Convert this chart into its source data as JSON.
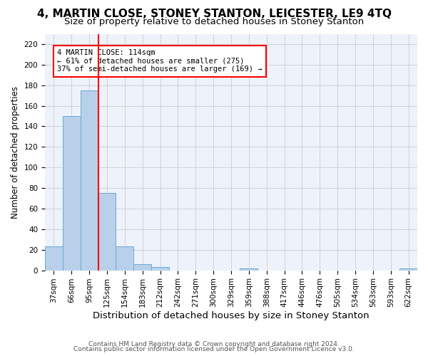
{
  "title": "4, MARTIN CLOSE, STONEY STANTON, LEICESTER, LE9 4TQ",
  "subtitle": "Size of property relative to detached houses in Stoney Stanton",
  "xlabel": "Distribution of detached houses by size in Stoney Stanton",
  "ylabel": "Number of detached properties",
  "footer_line1": "Contains HM Land Registry data © Crown copyright and database right 2024.",
  "footer_line2": "Contains public sector information licensed under the Open Government Licence v3.0.",
  "bins": [
    "37sqm",
    "66sqm",
    "95sqm",
    "125sqm",
    "154sqm",
    "183sqm",
    "212sqm",
    "242sqm",
    "271sqm",
    "300sqm",
    "329sqm",
    "359sqm",
    "388sqm",
    "417sqm",
    "446sqm",
    "476sqm",
    "505sqm",
    "534sqm",
    "563sqm",
    "593sqm",
    "622sqm"
  ],
  "bar_values": [
    23,
    150,
    175,
    75,
    23,
    6,
    3,
    0,
    0,
    0,
    0,
    2,
    0,
    0,
    0,
    0,
    0,
    0,
    0,
    0,
    2
  ],
  "bar_color": "#b8d0ea",
  "bar_edge_color": "#6aaad4",
  "property_line_x": 2.5,
  "property_line_color": "red",
  "annotation_text": "4 MARTIN CLOSE: 114sqm\n← 61% of detached houses are smaller (275)\n37% of semi-detached houses are larger (169) →",
  "ylim": [
    0,
    230
  ],
  "yticks": [
    0,
    20,
    40,
    60,
    80,
    100,
    120,
    140,
    160,
    180,
    200,
    220
  ],
  "grid_color": "#cccccc",
  "bg_color": "#eef2fb",
  "title_fontsize": 11,
  "subtitle_fontsize": 9.5,
  "xlabel_fontsize": 9.5,
  "ylabel_fontsize": 8.5,
  "tick_fontsize": 7.5,
  "footer_fontsize": 6.5
}
